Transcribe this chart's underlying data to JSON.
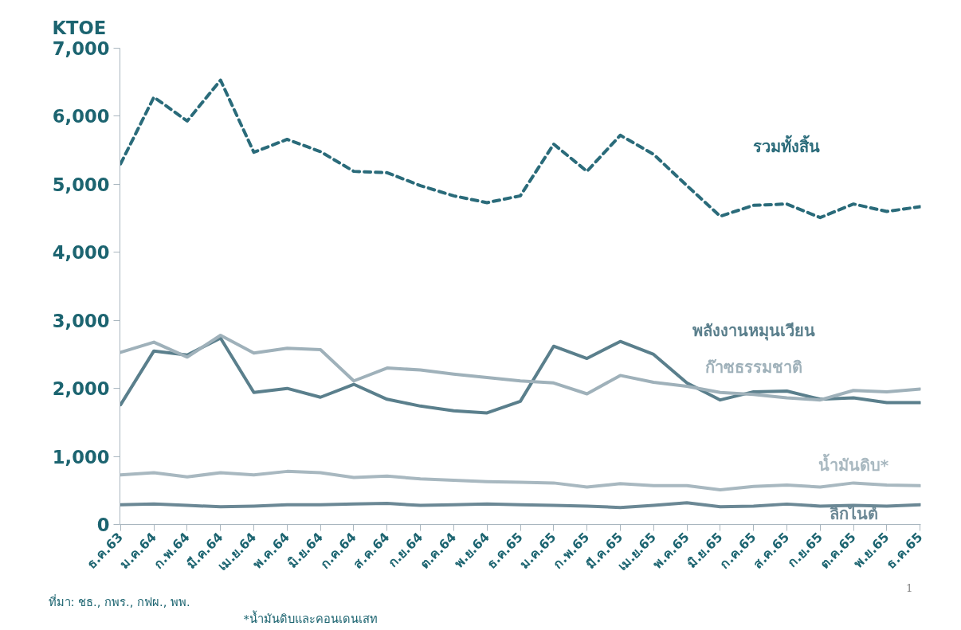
{
  "chart_data": {
    "type": "line",
    "ylabel": "KTOE",
    "categories": [
      "ธ.ค.63",
      "ม.ค.64",
      "ก.พ.64",
      "มี.ค.64",
      "เม.ย.64",
      "พ.ค.64",
      "มิ.ย.64",
      "ก.ค.64",
      "ส.ค.64",
      "ก.ย.64",
      "ต.ค.64",
      "พ.ย.64",
      "ธ.ค.65",
      "ม.ค.65",
      "ก.พ.65",
      "มี.ค.65",
      "เม.ย.65",
      "พ.ค.65",
      "มิ.ย.65",
      "ก.ค.65",
      "ส.ค.65",
      "ก.ย.65",
      "ต.ค.65",
      "พ.ย.65",
      "ธ.ค.65"
    ],
    "series": [
      {
        "name": "รวมทั้งสิ้น",
        "color": "#2a6b7a",
        "line_style": "dashed",
        "values": [
          5300,
          6280,
          5930,
          6530,
          5470,
          5660,
          5480,
          5190,
          5170,
          4980,
          4830,
          4730,
          4830,
          5590,
          5190,
          5720,
          5440,
          4980,
          4530,
          4690,
          4710,
          4510,
          4710,
          4600,
          4670
        ]
      },
      {
        "name": "พลังงานหมุนเวียน",
        "color": "#5a7f8c",
        "values": [
          1760,
          2550,
          2490,
          2740,
          1940,
          2000,
          1870,
          2060,
          1840,
          1740,
          1670,
          1640,
          1810,
          2620,
          2440,
          2690,
          2500,
          2080,
          1830,
          1950,
          1960,
          1840,
          1860,
          1790,
          1790
        ]
      },
      {
        "name": "ก๊าซธรรมชาติ",
        "color": "#9fb1ba",
        "values": [
          2530,
          2680,
          2460,
          2780,
          2520,
          2590,
          2570,
          2110,
          2300,
          2270,
          2210,
          2160,
          2110,
          2080,
          1920,
          2190,
          2090,
          2030,
          1940,
          1910,
          1860,
          1830,
          1970,
          1950,
          1990
        ]
      },
      {
        "name": "น้ำมันดิบ*",
        "color": "#a8b8c0",
        "values": [
          730,
          760,
          700,
          760,
          730,
          780,
          760,
          690,
          710,
          670,
          650,
          630,
          620,
          610,
          550,
          600,
          570,
          570,
          510,
          560,
          580,
          550,
          610,
          580,
          570
        ]
      },
      {
        "name": "ลิกไนต์",
        "color": "#6b8895",
        "values": [
          290,
          300,
          280,
          260,
          270,
          290,
          290,
          300,
          310,
          280,
          290,
          300,
          290,
          280,
          270,
          250,
          280,
          320,
          260,
          270,
          300,
          270,
          280,
          270,
          290
        ]
      }
    ],
    "ylim": [
      0,
      7000
    ],
    "yticks": [
      0,
      {
        "value": 1000,
        "label": "1,000"
      },
      {
        "value": 2000,
        "label": "2,000"
      },
      {
        "value": 3000,
        "label": "3,000"
      },
      {
        "value": 4000,
        "label": "4,000"
      },
      {
        "value": 5000,
        "label": "5,000"
      },
      {
        "value": 6000,
        "label": "6,000"
      },
      {
        "value": 7000,
        "label": "7,000"
      }
    ],
    "grid": false,
    "legend": false,
    "annotations": [
      "ที่มา: ชธ., กพร., กฟผ., พพ.",
      "*น้ำมันดิบและคอนเดนเสท",
      "1"
    ]
  }
}
